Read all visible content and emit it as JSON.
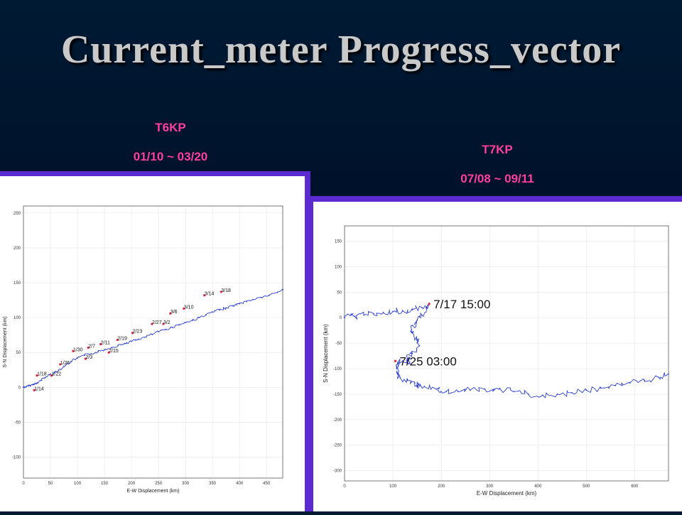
{
  "slide": {
    "title": "Current_meter  Progress_vector"
  },
  "captions": {
    "left": {
      "station": "T6KP",
      "period": "01/10 ~ 03/20"
    },
    "right": {
      "station": "T7KP",
      "period": "07/08 ~ 09/11"
    }
  },
  "colors": {
    "caption": "#ff3f9a",
    "panel_border": "#5b2bd1",
    "trace": "#2b3fd8",
    "marker": "#e8213a"
  },
  "chart_data": [
    {
      "type": "line",
      "title": "",
      "xlabel": "E-W Displacement (km)",
      "ylabel": "S-N Displacement (km)",
      "xlim": [
        0,
        480
      ],
      "ylim": [
        -130,
        260
      ],
      "xticks": [
        0,
        50,
        100,
        150,
        200,
        250,
        300,
        350,
        400,
        450
      ],
      "yticks": [
        -100,
        -50,
        0,
        50,
        100,
        150,
        200,
        250
      ],
      "grid": true,
      "series": [
        {
          "x": [
            0,
            5,
            10,
            18,
            25,
            32,
            40,
            48,
            57,
            65,
            75,
            88,
            100,
            113,
            125,
            138,
            150,
            163,
            175,
            188,
            200,
            213,
            225,
            238,
            250,
            263,
            275,
            288,
            300,
            313,
            325,
            338,
            350,
            363,
            375,
            388,
            400,
            413,
            425,
            440,
            455,
            470,
            480
          ],
          "y": [
            0,
            1,
            2,
            4,
            6,
            10,
            14,
            18,
            21,
            24,
            30,
            37,
            42,
            46,
            48,
            51,
            54,
            57,
            60,
            63,
            66,
            69,
            72,
            76,
            80,
            83,
            86,
            90,
            93,
            96,
            100,
            104,
            108,
            111,
            114,
            117,
            120,
            123,
            126,
            129,
            132,
            136,
            140
          ]
        }
      ],
      "annotations": [
        {
          "label": "1/14",
          "x": 20,
          "y": -4
        },
        {
          "label": "1/18",
          "x": 25,
          "y": 17
        },
        {
          "label": "1/22",
          "x": 52,
          "y": 17
        },
        {
          "label": "1/26",
          "x": 68,
          "y": 33
        },
        {
          "label": "1/30",
          "x": 92,
          "y": 52
        },
        {
          "label": "2/3",
          "x": 115,
          "y": 41
        },
        {
          "label": "2/7",
          "x": 120,
          "y": 57
        },
        {
          "label": "2/11",
          "x": 143,
          "y": 62
        },
        {
          "label": "2/15",
          "x": 158,
          "y": 50
        },
        {
          "label": "2/19",
          "x": 174,
          "y": 68
        },
        {
          "label": "2/23",
          "x": 202,
          "y": 78
        },
        {
          "label": "2/27",
          "x": 238,
          "y": 91
        },
        {
          "label": "3/2",
          "x": 259,
          "y": 91
        },
        {
          "label": "3/6",
          "x": 272,
          "y": 106
        },
        {
          "label": "3/10",
          "x": 297,
          "y": 113
        },
        {
          "label": "3/14",
          "x": 335,
          "y": 132
        },
        {
          "label": "3/18",
          "x": 366,
          "y": 137
        }
      ]
    },
    {
      "type": "line",
      "title": "",
      "xlabel": "E-W Displacement (km)",
      "ylabel": "S-N Displacement (km)",
      "xlim": [
        0,
        670
      ],
      "ylim": [
        -320,
        180
      ],
      "xticks": [
        0,
        100,
        200,
        300,
        400,
        500,
        600
      ],
      "yticks": [
        -300,
        -250,
        -200,
        -150,
        -100,
        -50,
        0,
        50,
        100,
        150
      ],
      "grid": true,
      "series": [
        {
          "x": [
            0,
            20,
            40,
            60,
            80,
            100,
            120,
            140,
            160,
            175,
            170,
            160,
            150,
            140,
            140,
            150,
            155,
            140,
            130,
            135,
            120,
            110,
            108,
            110,
            115,
            130,
            145,
            150,
            165,
            190,
            210,
            235,
            260,
            290,
            320,
            350,
            380,
            410,
            440,
            470,
            500,
            530,
            560,
            590,
            620,
            650,
            670
          ],
          "y": [
            0,
            3,
            5,
            8,
            10,
            12,
            14,
            17,
            20,
            27,
            20,
            5,
            -5,
            -15,
            -30,
            -45,
            -55,
            -70,
            -80,
            -90,
            -85,
            -88,
            -100,
            -110,
            -118,
            -122,
            -128,
            -133,
            -135,
            -140,
            -145,
            -145,
            -142,
            -140,
            -140,
            -145,
            -150,
            -152,
            -150,
            -147,
            -142,
            -138,
            -133,
            -128,
            -123,
            -117,
            -110
          ]
        }
      ],
      "annotations": [
        {
          "label": "7/17 15:00",
          "x": 175,
          "y": 27
        },
        {
          "label": "7/25 03:00",
          "x": 105,
          "y": -85
        }
      ]
    }
  ]
}
